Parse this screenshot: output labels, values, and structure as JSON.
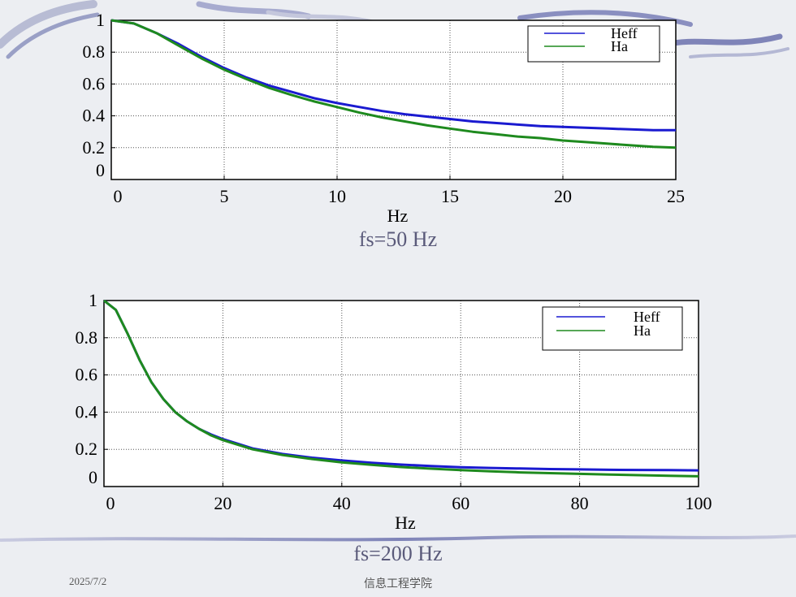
{
  "slide": {
    "caption_top": "fs=50 Hz",
    "caption_bottom": "fs=200 Hz",
    "footer_date": "2025/7/2",
    "footer_org": "信息工程学院"
  },
  "colors": {
    "heff": "#1a1ad0",
    "ha": "#1e8a1e"
  },
  "chart_data": [
    {
      "type": "line",
      "xlabel": "Hz",
      "xlim": [
        0,
        25
      ],
      "ylim": [
        0,
        1
      ],
      "xticks": [
        0,
        5,
        10,
        15,
        20,
        25
      ],
      "yticks": [
        0,
        0.2,
        0.4,
        0.6,
        0.8,
        1
      ],
      "ytick_labels": [
        "0",
        "0.2",
        "0.4",
        "0.6",
        "0.8",
        "1"
      ],
      "grid": true,
      "legend_position": "top-right",
      "series": [
        {
          "name": "Heff",
          "x": [
            0,
            1,
            2,
            3,
            4,
            5,
            6,
            7,
            8,
            9,
            10,
            11,
            12,
            13,
            14,
            15,
            16,
            17,
            18,
            19,
            20,
            21,
            22,
            23,
            24,
            25
          ],
          "values": [
            1.0,
            0.98,
            0.92,
            0.85,
            0.77,
            0.7,
            0.64,
            0.59,
            0.55,
            0.51,
            0.48,
            0.455,
            0.43,
            0.41,
            0.395,
            0.38,
            0.365,
            0.355,
            0.345,
            0.335,
            0.33,
            0.325,
            0.32,
            0.315,
            0.31,
            0.31
          ]
        },
        {
          "name": "Ha",
          "x": [
            0,
            1,
            2,
            3,
            4,
            5,
            6,
            7,
            8,
            9,
            10,
            11,
            12,
            13,
            14,
            15,
            16,
            17,
            18,
            19,
            20,
            21,
            22,
            23,
            24,
            25
          ],
          "values": [
            1.0,
            0.98,
            0.92,
            0.84,
            0.76,
            0.69,
            0.63,
            0.575,
            0.53,
            0.49,
            0.455,
            0.42,
            0.39,
            0.365,
            0.34,
            0.32,
            0.3,
            0.285,
            0.27,
            0.26,
            0.245,
            0.235,
            0.225,
            0.215,
            0.205,
            0.2
          ]
        }
      ]
    },
    {
      "type": "line",
      "xlabel": "Hz",
      "xlim": [
        0,
        100
      ],
      "ylim": [
        0,
        1
      ],
      "xticks": [
        0,
        20,
        40,
        60,
        80,
        100
      ],
      "yticks": [
        0,
        0.2,
        0.4,
        0.6,
        0.8,
        1
      ],
      "ytick_labels": [
        "0",
        "0.2",
        "0.4",
        "0.6",
        "0.8",
        "1"
      ],
      "grid": true,
      "legend_position": "top-right",
      "series": [
        {
          "name": "Heff",
          "x": [
            0,
            2,
            4,
            6,
            8,
            10,
            12,
            14,
            16,
            18,
            20,
            25,
            30,
            35,
            40,
            45,
            50,
            55,
            60,
            65,
            70,
            75,
            80,
            85,
            90,
            95,
            100
          ],
          "values": [
            1.0,
            0.95,
            0.82,
            0.68,
            0.56,
            0.47,
            0.4,
            0.35,
            0.31,
            0.28,
            0.255,
            0.205,
            0.175,
            0.155,
            0.14,
            0.128,
            0.118,
            0.11,
            0.104,
            0.1,
            0.097,
            0.094,
            0.092,
            0.09,
            0.089,
            0.088,
            0.087
          ]
        },
        {
          "name": "Ha",
          "x": [
            0,
            2,
            4,
            6,
            8,
            10,
            12,
            14,
            16,
            18,
            20,
            25,
            30,
            35,
            40,
            45,
            50,
            55,
            60,
            65,
            70,
            75,
            80,
            85,
            90,
            95,
            100
          ],
          "values": [
            1.0,
            0.95,
            0.82,
            0.68,
            0.56,
            0.47,
            0.4,
            0.35,
            0.31,
            0.275,
            0.25,
            0.2,
            0.17,
            0.148,
            0.13,
            0.117,
            0.105,
            0.096,
            0.088,
            0.082,
            0.076,
            0.072,
            0.068,
            0.064,
            0.061,
            0.058,
            0.055
          ]
        }
      ]
    }
  ]
}
